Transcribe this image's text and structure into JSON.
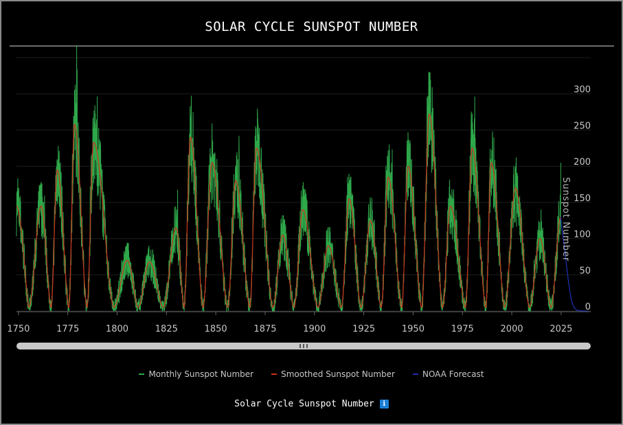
{
  "page": {
    "title": "SOLAR CYCLE SUNSPOT NUMBER",
    "footer_title": "Solar Cycle Sunspot Number",
    "info_icon_glyph": "i"
  },
  "legend": [
    {
      "label": "Monthly Sunspot Number",
      "color": "#2fa84a"
    },
    {
      "label": "Smoothed Sunspot Number",
      "color": "#d0301e"
    },
    {
      "label": "NOAA Forecast",
      "color": "#1c2ea8"
    }
  ],
  "chart_data": {
    "type": "line",
    "title": "SOLAR CYCLE SUNSPOT NUMBER",
    "xlabel": "",
    "ylabel": "Sunspot Number",
    "xlim": [
      1749,
      2040
    ],
    "ylim": [
      0,
      350
    ],
    "x_ticks": [
      1750,
      1775,
      1800,
      1825,
      1850,
      1875,
      1900,
      1925,
      1950,
      1975,
      2000,
      2025
    ],
    "y_ticks": [
      0,
      50,
      100,
      150,
      200,
      250,
      300
    ],
    "grid": true,
    "legend_position": "bottom",
    "cycles": [
      {
        "min": 1755.2,
        "max": 1761.5,
        "peak": 145,
        "end": 1766.5
      },
      {
        "min": 1766.5,
        "max": 1769.7,
        "peak": 195,
        "end": 1775.5
      },
      {
        "min": 1775.5,
        "max": 1778.4,
        "peak": 258,
        "end": 1784.7
      },
      {
        "min": 1784.7,
        "max": 1788.1,
        "peak": 233,
        "end": 1798.3
      },
      {
        "min": 1798.3,
        "max": 1805.2,
        "peak": 70,
        "end": 1810.6
      },
      {
        "min": 1810.6,
        "max": 1816.4,
        "peak": 68,
        "end": 1823.3
      },
      {
        "min": 1823.3,
        "max": 1829.9,
        "peak": 115,
        "end": 1833.9
      },
      {
        "min": 1833.9,
        "max": 1837.2,
        "peak": 240,
        "end": 1843.5
      },
      {
        "min": 1843.5,
        "max": 1848.1,
        "peak": 205,
        "end": 1856.0
      },
      {
        "min": 1856.0,
        "max": 1860.1,
        "peak": 180,
        "end": 1867.2
      },
      {
        "min": 1867.2,
        "max": 1870.6,
        "peak": 225,
        "end": 1878.9
      },
      {
        "min": 1878.9,
        "max": 1883.9,
        "peak": 105,
        "end": 1889.6
      },
      {
        "min": 1889.6,
        "max": 1894.1,
        "peak": 140,
        "end": 1901.7
      },
      {
        "min": 1901.7,
        "max": 1907.0,
        "peak": 90,
        "end": 1913.6
      },
      {
        "min": 1913.6,
        "max": 1917.6,
        "peak": 155,
        "end": 1923.6
      },
      {
        "min": 1923.6,
        "max": 1928.4,
        "peak": 125,
        "end": 1933.8
      },
      {
        "min": 1933.8,
        "max": 1937.4,
        "peak": 185,
        "end": 1944.2
      },
      {
        "min": 1944.2,
        "max": 1947.5,
        "peak": 200,
        "end": 1954.3
      },
      {
        "min": 1954.3,
        "max": 1958.2,
        "peak": 272,
        "end": 1964.9
      },
      {
        "min": 1964.9,
        "max": 1968.9,
        "peak": 145,
        "end": 1976.5
      },
      {
        "min": 1976.5,
        "max": 1979.9,
        "peak": 225,
        "end": 1986.8
      },
      {
        "min": 1986.8,
        "max": 1989.6,
        "peak": 205,
        "end": 1996.4
      },
      {
        "min": 1996.4,
        "max": 2001.9,
        "peak": 170,
        "end": 2008.9
      },
      {
        "min": 2008.9,
        "max": 2014.3,
        "peak": 100,
        "end": 2019.9
      },
      {
        "min": 2019.9,
        "max": 2024.8,
        "peak": 130,
        "end": 2031.0
      }
    ],
    "series": [
      {
        "name": "Monthly Sunspot Number",
        "color": "#2fa84a"
      },
      {
        "name": "Smoothed Sunspot Number",
        "color": "#d0301e"
      },
      {
        "name": "NOAA Forecast",
        "color": "#1c2ea8",
        "x": [
          2024.8,
          2025.5,
          2026.5,
          2027.5,
          2028.5,
          2029.5,
          2030.5,
          2031.5,
          2033,
          2036,
          2038.5
        ],
        "values": [
          130,
          112,
          92,
          68,
          45,
          26,
          12,
          5,
          1,
          0,
          0
        ]
      }
    ]
  }
}
